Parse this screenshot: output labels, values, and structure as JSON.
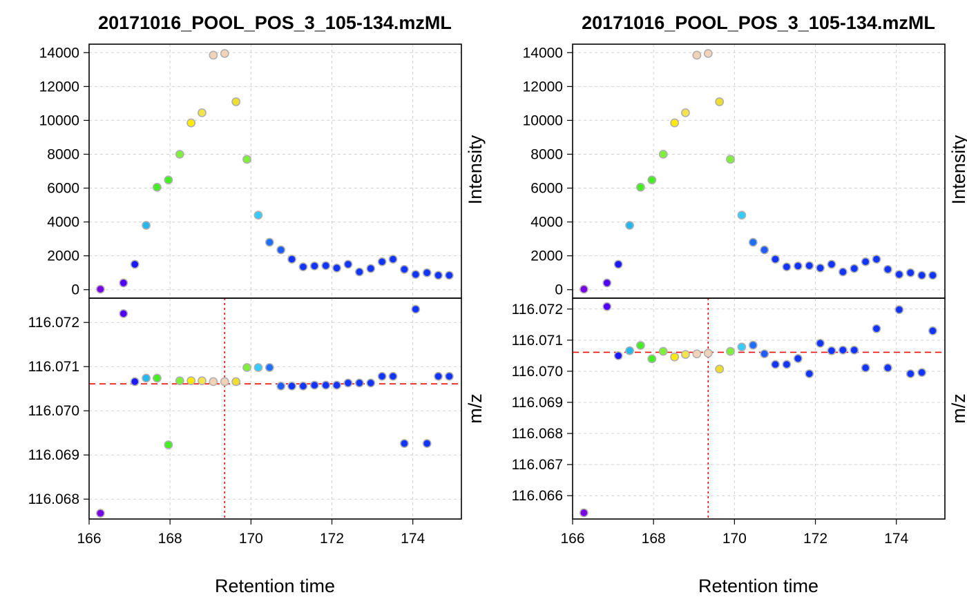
{
  "chart_data": [
    {
      "type": "scatter",
      "title": "20171016_POOL_POS_3_105-134.mzML",
      "xlabel": "Retention time",
      "xlim": [
        166,
        175.2
      ],
      "xticks": [
        166,
        168,
        170,
        172,
        174
      ],
      "panels": [
        {
          "ylabel": "Intensity",
          "ylim": [
            -500,
            14500
          ],
          "yticks": [
            0,
            2000,
            4000,
            6000,
            8000,
            10000,
            12000,
            14000
          ],
          "ytick_labels": [
            "0",
            "2000",
            "4000",
            "6000",
            "8000",
            "10000",
            "12000",
            "14000"
          ],
          "x": [
            166.28,
            166.85,
            167.13,
            167.41,
            167.68,
            167.96,
            168.24,
            168.52,
            168.79,
            169.07,
            169.35,
            169.63,
            169.9,
            170.18,
            170.46,
            170.74,
            171.01,
            171.29,
            171.57,
            171.85,
            172.12,
            172.4,
            172.68,
            172.96,
            173.24,
            173.51,
            173.79,
            174.07,
            174.35,
            174.63,
            174.9
          ],
          "y": [
            30,
            400,
            1500,
            3800,
            6050,
            6480,
            8000,
            9850,
            10450,
            13850,
            13950,
            11100,
            7700,
            4400,
            2800,
            2350,
            1800,
            1350,
            1400,
            1420,
            1280,
            1500,
            1050,
            1250,
            1650,
            1800,
            1200,
            900,
            1000,
            850,
            850
          ]
        },
        {
          "ylabel": "m/z",
          "ylim": [
            116.06755,
            116.07255
          ],
          "yticks": [
            116.068,
            116.069,
            116.07,
            116.071,
            116.072
          ],
          "ytick_labels": [
            "116.068",
            "116.069",
            "116.070",
            "116.071",
            "116.072"
          ],
          "hline": 116.07061,
          "vline": 169.35,
          "x": [
            166.28,
            166.85,
            167.13,
            167.41,
            167.68,
            167.96,
            168.24,
            168.52,
            168.79,
            169.07,
            169.35,
            169.63,
            169.9,
            170.18,
            170.46,
            170.74,
            171.01,
            171.29,
            171.57,
            171.85,
            172.12,
            172.4,
            172.68,
            172.96,
            173.24,
            173.51,
            173.79,
            174.07,
            174.35,
            174.63,
            174.9
          ],
          "y": [
            116.06768,
            116.0722,
            116.07066,
            116.07074,
            116.07074,
            116.06923,
            116.07068,
            116.07068,
            116.07068,
            116.07066,
            116.07066,
            116.07066,
            116.07098,
            116.07098,
            116.07098,
            116.07056,
            116.07056,
            116.07056,
            116.07058,
            116.07058,
            116.07058,
            116.07063,
            116.07063,
            116.07063,
            116.07078,
            116.07078,
            116.06926,
            116.0723,
            116.06926,
            116.07078,
            116.07078
          ]
        }
      ]
    },
    {
      "type": "scatter",
      "title": "20171016_POOL_POS_3_105-134.mzML",
      "xlabel": "Retention time",
      "xlim": [
        166,
        175.2
      ],
      "xticks": [
        166,
        168,
        170,
        172,
        174
      ],
      "panels": [
        {
          "ylabel": "Intensity",
          "ylim": [
            -500,
            14500
          ],
          "yticks": [
            0,
            2000,
            4000,
            6000,
            8000,
            10000,
            12000,
            14000
          ],
          "ytick_labels": [
            "0",
            "2000",
            "4000",
            "6000",
            "8000",
            "10000",
            "12000",
            "14000"
          ],
          "x": [
            166.28,
            166.85,
            167.13,
            167.41,
            167.68,
            167.96,
            168.24,
            168.52,
            168.79,
            169.07,
            169.35,
            169.63,
            169.9,
            170.18,
            170.46,
            170.74,
            171.01,
            171.29,
            171.57,
            171.85,
            172.12,
            172.4,
            172.68,
            172.96,
            173.24,
            173.51,
            173.79,
            174.07,
            174.35,
            174.63,
            174.9
          ],
          "y": [
            30,
            400,
            1500,
            3800,
            6050,
            6480,
            8000,
            9850,
            10450,
            13850,
            13950,
            11100,
            7700,
            4400,
            2800,
            2350,
            1800,
            1350,
            1400,
            1420,
            1280,
            1500,
            1050,
            1250,
            1650,
            1800,
            1200,
            900,
            1000,
            850,
            850
          ]
        },
        {
          "ylabel": "m/z",
          "ylim": [
            116.06525,
            116.07235
          ],
          "yticks": [
            116.066,
            116.067,
            116.068,
            116.069,
            116.07,
            116.071,
            116.072
          ],
          "ytick_labels": [
            "116.066",
            "116.067",
            "116.068",
            "116.069",
            "116.070",
            "116.071",
            "116.072"
          ],
          "hline": 116.07061,
          "vline": 169.35,
          "x": [
            166.28,
            166.85,
            167.13,
            167.41,
            167.68,
            167.96,
            168.24,
            168.52,
            168.79,
            169.07,
            169.35,
            169.63,
            169.9,
            170.18,
            170.46,
            170.74,
            171.01,
            171.29,
            171.57,
            171.85,
            172.12,
            172.4,
            172.68,
            172.96,
            173.24,
            173.51,
            173.79,
            174.07,
            174.35,
            174.63,
            174.9
          ],
          "y": [
            116.06545,
            116.07208,
            116.0705,
            116.07066,
            116.07083,
            116.0704,
            116.07064,
            116.07046,
            116.07054,
            116.07056,
            116.07058,
            116.07007,
            116.07064,
            116.07078,
            116.07084,
            116.07056,
            116.07022,
            116.07022,
            116.07041,
            116.06992,
            116.0709,
            116.07066,
            116.07068,
            116.07068,
            116.07011,
            116.07137,
            116.07011,
            116.07198,
            116.06992,
            116.06996,
            116.0713
          ]
        }
      ]
    }
  ],
  "point_colors": [
    "#7a00e6",
    "#5000ff",
    "#1b18ff",
    "#25b8ee",
    "#44ee22",
    "#44ee22",
    "#7ef03a",
    "#ffea00",
    "#f2e44a",
    "#f2d3b8",
    "#f2d3b8",
    "#f0de2c",
    "#7ef03a",
    "#33ccff",
    "#1e6fff",
    "#1e5cff",
    "#1234ff",
    "#1234ff",
    "#1234ff",
    "#1234ff",
    "#1234ff",
    "#1234ff",
    "#1234ff",
    "#1234ff",
    "#1234ff",
    "#1234ff",
    "#1234ff",
    "#1234ff",
    "#1234ff",
    "#1234ff",
    "#1234ff"
  ],
  "colors": {
    "point_outline": "#b0b0b0",
    "grid": "#d0d0d0",
    "reference_line": "#ff0000",
    "axis": "#000000"
  }
}
